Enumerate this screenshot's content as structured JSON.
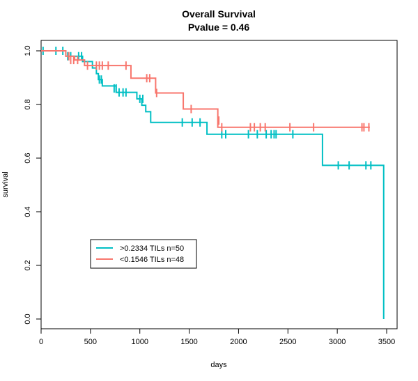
{
  "chart_data": {
    "type": "line",
    "title": "Overall Survival",
    "subtitle": "Pvalue = 0.46",
    "xlabel": "days",
    "ylabel": "survival",
    "xlim": [
      0,
      3500
    ],
    "ylim": [
      0,
      1
    ],
    "x_ticks": [
      "0",
      "500",
      "1000",
      "1500",
      "2000",
      "2500",
      "3000",
      "3500"
    ],
    "y_ticks": [
      "0.0",
      "0.2",
      "0.4",
      "0.6",
      "0.8",
      "1.0"
    ],
    "legend_position": "bottom-left",
    "series": [
      {
        "name": ">0.2334 TILs n=50",
        "color": "#00BFC4",
        "steps": [
          [
            0,
            1.0
          ],
          [
            250,
            0.98
          ],
          [
            420,
            0.96
          ],
          [
            520,
            0.936
          ],
          [
            560,
            0.915
          ],
          [
            580,
            0.893
          ],
          [
            620,
            0.869
          ],
          [
            760,
            0.845
          ],
          [
            970,
            0.821
          ],
          [
            1020,
            0.797
          ],
          [
            1060,
            0.773
          ],
          [
            1110,
            0.733
          ],
          [
            1680,
            0.689
          ],
          [
            2850,
            0.573
          ],
          [
            3470,
            0.0
          ]
        ],
        "censored": [
          [
            20,
            1.0
          ],
          [
            150,
            1.0
          ],
          [
            220,
            1.0
          ],
          [
            270,
            0.98
          ],
          [
            300,
            0.98
          ],
          [
            380,
            0.98
          ],
          [
            410,
            0.98
          ],
          [
            590,
            0.893
          ],
          [
            610,
            0.893
          ],
          [
            740,
            0.86
          ],
          [
            760,
            0.86
          ],
          [
            790,
            0.845
          ],
          [
            830,
            0.845
          ],
          [
            860,
            0.845
          ],
          [
            1000,
            0.821
          ],
          [
            1030,
            0.821
          ],
          [
            1430,
            0.733
          ],
          [
            1530,
            0.733
          ],
          [
            1610,
            0.733
          ],
          [
            1830,
            0.689
          ],
          [
            1870,
            0.689
          ],
          [
            2100,
            0.689
          ],
          [
            2190,
            0.689
          ],
          [
            2280,
            0.689
          ],
          [
            2330,
            0.689
          ],
          [
            2360,
            0.689
          ],
          [
            2380,
            0.689
          ],
          [
            2550,
            0.689
          ],
          [
            3010,
            0.573
          ],
          [
            3120,
            0.573
          ],
          [
            3290,
            0.573
          ],
          [
            3340,
            0.573
          ]
        ]
      },
      {
        "name": "<0.1546 TILs n=48",
        "color": "#F8766D",
        "steps": [
          [
            0,
            1.0
          ],
          [
            250,
            0.98
          ],
          [
            340,
            0.966
          ],
          [
            440,
            0.945
          ],
          [
            910,
            0.898
          ],
          [
            1160,
            0.843
          ],
          [
            1440,
            0.783
          ],
          [
            1790,
            0.715
          ],
          [
            3330,
            0.715
          ]
        ],
        "censored": [
          [
            280,
            0.98
          ],
          [
            300,
            0.966
          ],
          [
            330,
            0.966
          ],
          [
            370,
            0.966
          ],
          [
            470,
            0.945
          ],
          [
            560,
            0.945
          ],
          [
            590,
            0.945
          ],
          [
            620,
            0.945
          ],
          [
            680,
            0.945
          ],
          [
            860,
            0.945
          ],
          [
            1070,
            0.898
          ],
          [
            1100,
            0.898
          ],
          [
            1170,
            0.843
          ],
          [
            1520,
            0.783
          ],
          [
            1800,
            0.74
          ],
          [
            1830,
            0.715
          ],
          [
            2120,
            0.715
          ],
          [
            2160,
            0.715
          ],
          [
            2220,
            0.715
          ],
          [
            2270,
            0.715
          ],
          [
            2520,
            0.715
          ],
          [
            2760,
            0.715
          ],
          [
            3250,
            0.715
          ],
          [
            3270,
            0.715
          ],
          [
            3320,
            0.715
          ]
        ]
      }
    ]
  }
}
